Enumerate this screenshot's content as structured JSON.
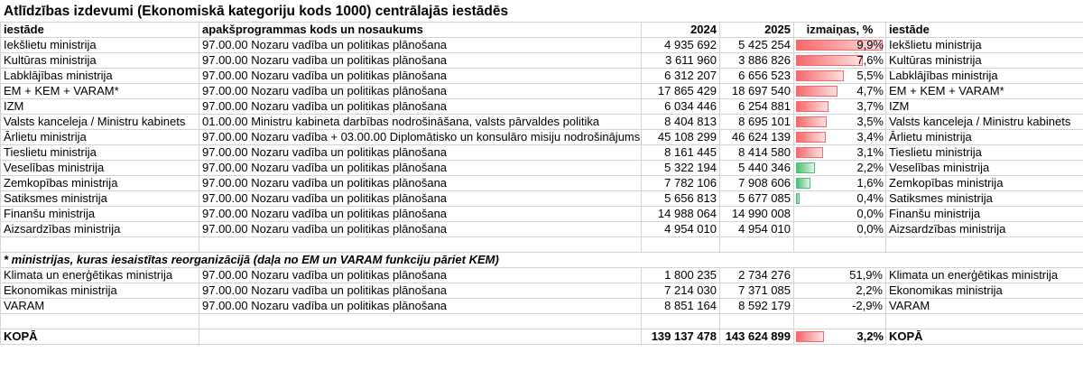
{
  "title": "Atlīdzības izdevumi (Ekonomiskā kategoriju kods 1000) centrālajās iestādēs",
  "headers": {
    "institution": "iestāde",
    "subprogram": "apakšprogrammas kods un nosaukums",
    "y2024": "2024",
    "y2025": "2025",
    "change": "izmaiņas, %",
    "institution2": "iestāde"
  },
  "rows": [
    {
      "inst": "Iekšlietu ministrija",
      "sub": "97.00.00 Nozaru vadība un politikas plānošana",
      "v2024": "4 935 692",
      "v2025": "5 425 254",
      "chg": "9,9%",
      "chg_value": 9.9
    },
    {
      "inst": "Kultūras ministrija",
      "sub": "97.00.00 Nozaru vadība un politikas plānošana",
      "v2024": "3 611 960",
      "v2025": "3 886 826",
      "chg": "7,6%",
      "chg_value": 7.6
    },
    {
      "inst": "Labklājības ministrija",
      "sub": "97.00.00 Nozaru vadība un politikas plānošana",
      "v2024": "6 312 207",
      "v2025": "6 656 523",
      "chg": "5,5%",
      "chg_value": 5.5
    },
    {
      "inst": "EM + KEM + VARAM*",
      "sub": "97.00.00 Nozaru vadība un politikas plānošana",
      "v2024": "17 865 429",
      "v2025": "18 697 540",
      "chg": "4,7%",
      "chg_value": 4.7
    },
    {
      "inst": "IZM",
      "sub": "97.00.00 Nozaru vadība un politikas plānošana",
      "v2024": "6 034 446",
      "v2025": "6 254 881",
      "chg": "3,7%",
      "chg_value": 3.7
    },
    {
      "inst": "Valsts kanceleja / Ministru kabinets",
      "sub": "01.00.00 Ministru kabineta darbības nodrošināšana, valsts pārvaldes politika",
      "v2024": "8 404 813",
      "v2025": "8 695 101",
      "chg": "3,5%",
      "chg_value": 3.5
    },
    {
      "inst": "Ārlietu ministrija",
      "sub": "97.00.00 Nozaru vadība + 03.00.00 Diplomātisko un konsulāro misiju nodrošinājums",
      "v2024": "45 108 299",
      "v2025": "46 624 139",
      "chg": "3,4%",
      "chg_value": 3.4
    },
    {
      "inst": "Tieslietu ministrija",
      "sub": "97.00.00 Nozaru vadība un politikas plānošana",
      "v2024": "8 161 445",
      "v2025": "8 414 580",
      "chg": "3,1%",
      "chg_value": 3.1
    },
    {
      "inst": "Veselības ministrija",
      "sub": "97.00.00 Nozaru vadība un politikas plānošana",
      "v2024": "5 322 194",
      "v2025": "5 440 346",
      "chg": "2,2%",
      "chg_value": 2.2
    },
    {
      "inst": "Zemkopības ministrija",
      "sub": "97.00.00 Nozaru vadība un politikas plānošana",
      "v2024": "7 782 106",
      "v2025": "7 908 606",
      "chg": "1,6%",
      "chg_value": 1.6
    },
    {
      "inst": "Satiksmes ministrija",
      "sub": "97.00.00 Nozaru vadība un politikas plānošana",
      "v2024": "5 656 813",
      "v2025": "5 677 085",
      "chg": "0,4%",
      "chg_value": 0.4
    },
    {
      "inst": "Finanšu ministrija",
      "sub": "97.00.00 Nozaru vadība un politikas plānošana",
      "v2024": "14 988 064",
      "v2025": "14 990 008",
      "chg": "0,0%",
      "chg_value": 0.0
    },
    {
      "inst": "Aizsardzības ministrija",
      "sub": "97.00.00 Nozaru vadība un politikas plānošana",
      "v2024": "4 954 010",
      "v2025": "4 954 010",
      "chg": "0,0%",
      "chg_value": 0.0
    }
  ],
  "note": "* ministrijas, kuras iesaistītas reorganizācijā (daļa no EM un VARAM funkciju pāriet KEM)",
  "reorg_rows": [
    {
      "inst": "Klimata un enerģētikas ministrija",
      "sub": "97.00.00 Nozaru vadība un politikas plānošana",
      "v2024": "1 800 235",
      "v2025": "2 734 276",
      "chg": "51,9%"
    },
    {
      "inst": "Ekonomikas ministrija",
      "sub": "97.00.00 Nozaru vadība un politikas plānošana",
      "v2024": "7 214 030",
      "v2025": "7 371 085",
      "chg": "2,2%"
    },
    {
      "inst": "VARAM",
      "sub": "97.00.00 Nozaru vadība un politikas plānošana",
      "v2024": "8 851 164",
      "v2025": "8 592 179",
      "chg": "-2,9%"
    }
  ],
  "total": {
    "label": "KOPĀ",
    "v2024": "139 137 478",
    "v2025": "143 624 899",
    "chg": "3,2%",
    "chg_value": 3.2,
    "label2": "KOPĀ"
  },
  "colors": {
    "bar_high": "#f8676a",
    "bar_low": "#4fbf73",
    "grid": "#d4d4d4"
  }
}
